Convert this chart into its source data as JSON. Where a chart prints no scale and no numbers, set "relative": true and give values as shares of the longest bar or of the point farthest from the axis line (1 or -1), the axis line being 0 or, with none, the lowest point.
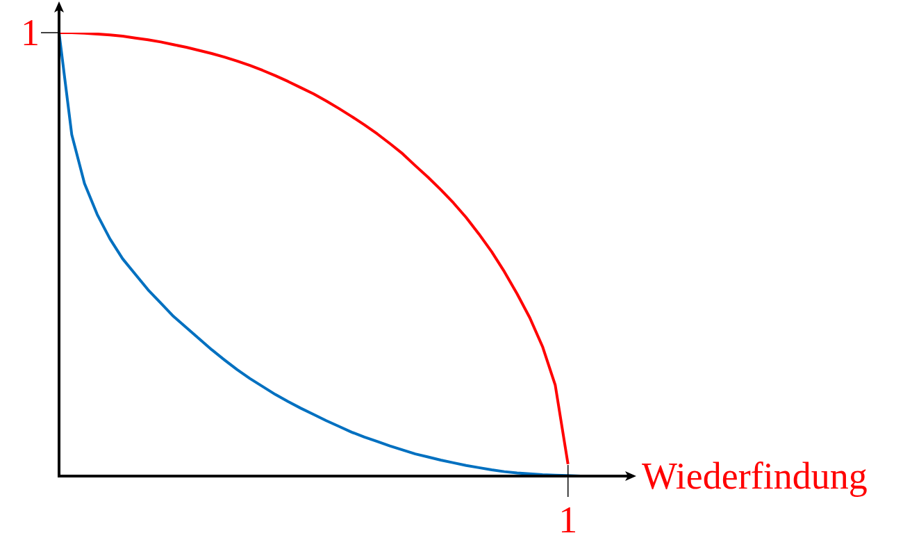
{
  "chart_data": {
    "type": "line",
    "xlabel": "Wiederfindung",
    "relative": true,
    "legend": false,
    "line_style": "solid",
    "annotations": [
      "1",
      "1"
    ],
    "categories": [
      null,
      null,
      null,
      null,
      null,
      null,
      null,
      null,
      null,
      null,
      null,
      null,
      null,
      null,
      null,
      null,
      null,
      null,
      null,
      null,
      null,
      null,
      null,
      null,
      null,
      null,
      null,
      null,
      null,
      null,
      null,
      null,
      null,
      null,
      null,
      null,
      null,
      null,
      null,
      null,
      null,
      null,
      null,
      null,
      null
    ],
    "series": [
      {
        "color": "#ff0000",
        "values": [
          1,
          1,
          0.999,
          0.997,
          0.995,
          0.992,
          0.988,
          0.984,
          0.979,
          0.973,
          0.967,
          0.96,
          0.953,
          0.945,
          0.936,
          0.926,
          0.915,
          0.903,
          0.89,
          0.876,
          0.862,
          0.846,
          0.829,
          0.811,
          0.792,
          0.772,
          0.75,
          0.727,
          0.7,
          0.674,
          0.646,
          0.616,
          0.583,
          0.546,
          0.506,
          0.461,
          0.411,
          0.357,
          0.292,
          0.205,
          0.027,
          null,
          null,
          null,
          null
        ]
      },
      {
        "color": "#0070c0",
        "values": [
          1,
          0.77,
          0.66,
          0.59,
          0.535,
          0.49,
          0.455,
          0.42,
          0.39,
          0.36,
          0.335,
          0.31,
          0.285,
          0.262,
          0.24,
          0.22,
          0.202,
          0.184,
          0.168,
          0.153,
          0.139,
          0.125,
          0.112,
          0.099,
          0.088,
          0.078,
          0.068,
          0.059,
          0.05,
          0.043,
          0.036,
          0.03,
          0.024,
          0.019,
          0.014,
          0.01,
          0.007,
          0.005,
          0.003,
          0.002,
          0.001,
          0,
          0,
          null,
          null
        ]
      }
    ]
  }
}
